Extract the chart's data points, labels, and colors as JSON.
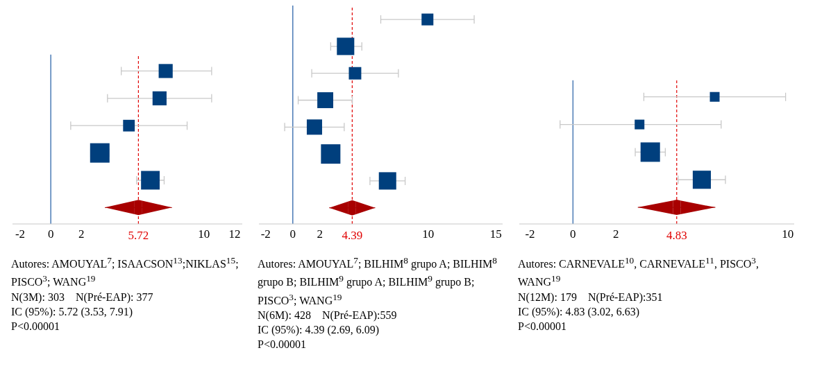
{
  "chart_data": [
    {
      "type": "bubble",
      "orientation": "horizontal",
      "categories": [
        null,
        null,
        null,
        null,
        null,
        null
      ],
      "series": [
        {
          "type": "bubble",
          "color": "#003f7d",
          "marker": "square",
          "values": [
            7.5,
            7.1,
            5.1,
            3.2,
            6.5,
            null
          ],
          "sizes": [
            0.52,
            0.52,
            0.36,
            1,
            0.92,
            null
          ],
          "errors": [
            [
              4.6,
              10.5
            ],
            [
              3.7,
              10.5
            ],
            [
              1.3,
              8.9
            ],
            [
              2.6,
              3.8
            ],
            [
              5.6,
              7.4
            ],
            null
          ]
        },
        {
          "type": "scatter",
          "color": "#a80000",
          "marker": "diamond",
          "values": [
            null,
            null,
            null,
            null,
            null,
            5.72
          ],
          "errors": [
            null,
            null,
            null,
            null,
            null,
            [
              3.53,
              7.91
            ]
          ]
        }
      ],
      "xlim": [
        -2.5,
        12.5
      ],
      "xticks": [
        -2,
        0,
        2,
        10,
        12
      ],
      "grid": false,
      "tick_labels": "x",
      "legend": false,
      "ref_lines": [
        {
          "axis": "x",
          "value": 0,
          "color": "#4a7ab5",
          "line_style": "solid"
        },
        {
          "axis": "x",
          "value": 5.72,
          "label": "5.72",
          "color": "#e00000",
          "line_style": "dashed"
        }
      ],
      "annotations": [
        "Autores: AMOUYAL$^{7}$; ISAACSON$^{13}$;NIKLAS$^{15}$; PISCO$^{3}$; WANG$^{19}$",
        "N(3M): 303    N(Pré-EAP): 377",
        "IC (95%): 5.72 (3.53, 7.91)",
        "P<0.00001"
      ]
    },
    {
      "type": "bubble",
      "orientation": "horizontal",
      "categories": [
        null,
        null,
        null,
        null,
        null,
        null,
        null,
        null
      ],
      "series": [
        {
          "type": "bubble",
          "color": "#003f7d",
          "marker": "square",
          "values": [
            9.95,
            3.9,
            4.6,
            2.4,
            1.6,
            2.8,
            7.0,
            null
          ],
          "sizes": [
            0.37,
            0.8,
            0.41,
            0.67,
            0.62,
            1,
            0.8,
            null
          ],
          "errors": [
            [
              6.5,
              13.4
            ],
            [
              2.8,
              5.1
            ],
            [
              1.4,
              7.8
            ],
            [
              0.4,
              4.4
            ],
            [
              -0.6,
              3.8
            ],
            null,
            [
              5.7,
              8.3
            ],
            null
          ]
        },
        {
          "type": "scatter",
          "color": "#a80000",
          "marker": "diamond",
          "values": [
            null,
            null,
            null,
            null,
            null,
            null,
            null,
            4.39
          ],
          "errors": [
            null,
            null,
            null,
            null,
            null,
            null,
            null,
            [
              2.69,
              6.09
            ]
          ]
        }
      ],
      "xlim": [
        -2.5,
        15.5
      ],
      "xticks": [
        -2,
        0,
        2,
        10,
        15
      ],
      "grid": false,
      "tick_labels": "x",
      "legend": false,
      "ref_lines": [
        {
          "axis": "x",
          "value": 0,
          "color": "#4a7ab5",
          "line_style": "solid"
        },
        {
          "axis": "x",
          "value": 4.39,
          "label": "4.39",
          "color": "#e00000",
          "line_style": "dashed"
        }
      ],
      "annotations": [
        "Autores: AMOUYAL$^{7}$; BILHIM$^{8}$ grupo A; BILHIM$^{8}$ grupo B; BILHIM$^{9}$ grupo A; BILHIM$^{9}$ grupo B; PISCO$^{3}$; WANG$^{19}$",
        "N(6M): 428    N(Pré-EAP):559",
        "IC (95%): 4.39 (2.69, 6.09)",
        "P<0.00001"
      ]
    },
    {
      "type": "bubble",
      "orientation": "horizontal",
      "categories": [
        null,
        null,
        null,
        null,
        null
      ],
      "series": [
        {
          "type": "bubble",
          "color": "#003f7d",
          "marker": "square",
          "values": [
            6.6,
            3.1,
            3.6,
            6.0,
            null
          ],
          "sizes": [
            0.25,
            0.25,
            1,
            0.87,
            null
          ],
          "errors": [
            [
              3.3,
              9.9
            ],
            [
              -0.6,
              6.9
            ],
            [
              2.9,
              4.3
            ],
            [
              4.9,
              7.1
            ],
            null
          ]
        },
        {
          "type": "scatter",
          "color": "#a80000",
          "marker": "diamond",
          "values": [
            null,
            null,
            null,
            null,
            4.83
          ],
          "errors": [
            null,
            null,
            null,
            null,
            [
              3.02,
              6.63
            ]
          ]
        }
      ],
      "xlim": [
        -2.5,
        10.3
      ],
      "xticks": [
        -2,
        0,
        2,
        10
      ],
      "grid": false,
      "tick_labels": "x",
      "legend": false,
      "ref_lines": [
        {
          "axis": "x",
          "value": 0,
          "color": "#4a7ab5",
          "line_style": "solid"
        },
        {
          "axis": "x",
          "value": 4.83,
          "label": "4.83",
          "color": "#e00000",
          "line_style": "dashed"
        }
      ],
      "annotations": [
        "Autores: CARNEVALE$^{10}$, CARNEVALE$^{11}$, PISCO$^{3}$, WANG$^{19}$",
        "N(12M): 179    N(Pré-EAP):351",
        "IC (95%): 4.83 (3.02, 6.63)",
        "P<0.00001"
      ]
    }
  ]
}
